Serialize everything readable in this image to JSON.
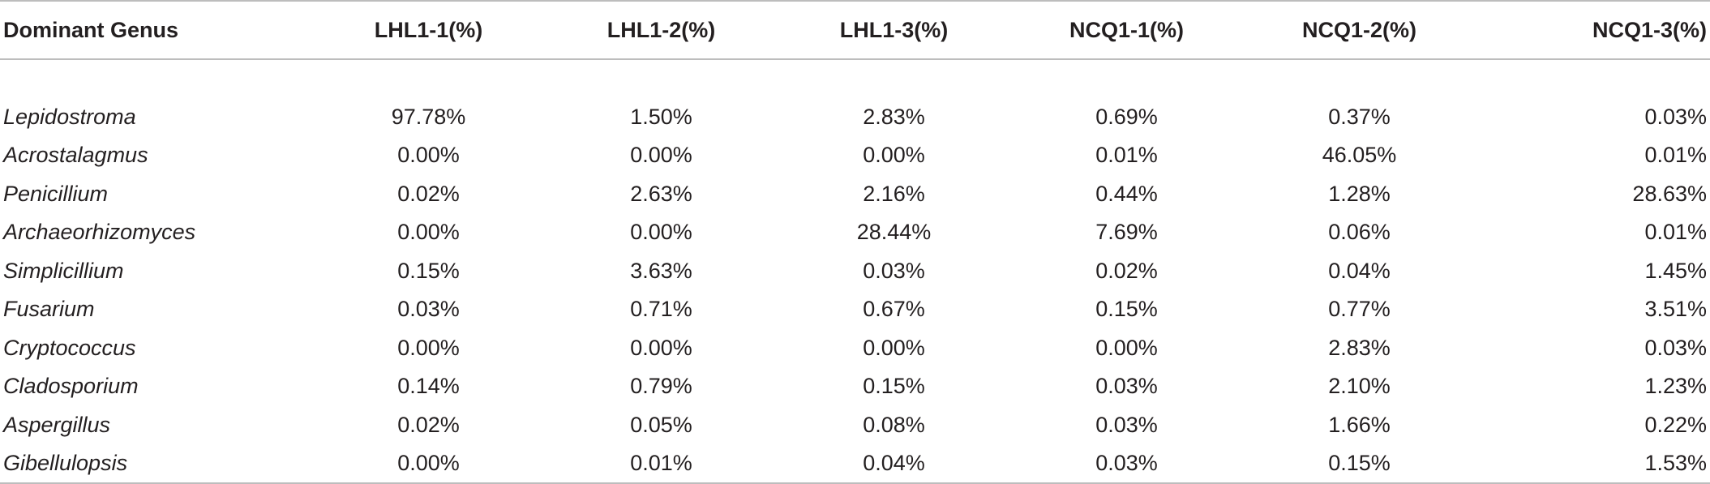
{
  "table": {
    "headers": [
      "Dominant Genus",
      "LHL1-1(%)",
      "LHL1-2(%)",
      "LHL1-3(%)",
      "NCQ1-1(%)",
      "NCQ1-2(%)",
      "NCQ1-3(%)"
    ],
    "rows": [
      {
        "genus": "Lepidostroma",
        "values": [
          "97.78%",
          "1.50%",
          "2.83%",
          "0.69%",
          "0.37%",
          "0.03%"
        ]
      },
      {
        "genus": "Acrostalagmus",
        "values": [
          "0.00%",
          "0.00%",
          "0.00%",
          "0.01%",
          "46.05%",
          "0.01%"
        ]
      },
      {
        "genus": "Penicillium",
        "values": [
          "0.02%",
          "2.63%",
          "2.16%",
          "0.44%",
          "1.28%",
          "28.63%"
        ]
      },
      {
        "genus": "Archaeorhizomyces",
        "values": [
          "0.00%",
          "0.00%",
          "28.44%",
          "7.69%",
          "0.06%",
          "0.01%"
        ]
      },
      {
        "genus": "Simplicillium",
        "values": [
          "0.15%",
          "3.63%",
          "0.03%",
          "0.02%",
          "0.04%",
          "1.45%"
        ]
      },
      {
        "genus": "Fusarium",
        "values": [
          "0.03%",
          "0.71%",
          "0.67%",
          "0.15%",
          "0.77%",
          "3.51%"
        ]
      },
      {
        "genus": "Cryptococcus",
        "values": [
          "0.00%",
          "0.00%",
          "0.00%",
          "0.00%",
          "2.83%",
          "0.03%"
        ]
      },
      {
        "genus": "Cladosporium",
        "values": [
          "0.14%",
          "0.79%",
          "0.15%",
          "0.03%",
          "2.10%",
          "1.23%"
        ]
      },
      {
        "genus": "Aspergillus",
        "values": [
          "0.02%",
          "0.05%",
          "0.08%",
          "0.03%",
          "1.66%",
          "0.22%"
        ]
      },
      {
        "genus": "Gibellulopsis",
        "values": [
          "0.00%",
          "0.01%",
          "0.04%",
          "0.03%",
          "0.15%",
          "1.53%"
        ]
      }
    ]
  }
}
